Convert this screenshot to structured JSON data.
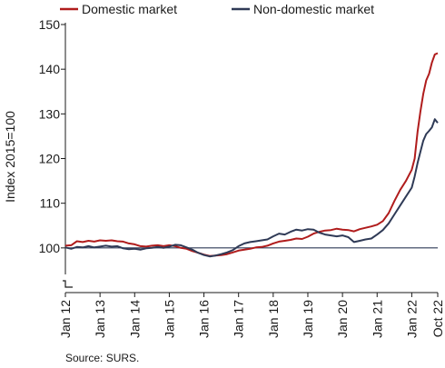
{
  "chart_data": {
    "type": "line",
    "title": "",
    "xlabel": "",
    "ylabel": "Index 2015=100",
    "ylim": [
      90,
      150
    ],
    "yticks": [
      100,
      110,
      120,
      130,
      140,
      150
    ],
    "xlim": [
      "2012-01",
      "2022-10"
    ],
    "xtick_labels": [
      {
        "label": "Jan 12",
        "date": "2012-01"
      },
      {
        "label": "Jan 13",
        "date": "2013-01"
      },
      {
        "label": "Jan 14",
        "date": "2014-01"
      },
      {
        "label": "Jan 15",
        "date": "2015-01"
      },
      {
        "label": "Jan 16",
        "date": "2016-01"
      },
      {
        "label": "Jan 17",
        "date": "2017-01"
      },
      {
        "label": "Jan 18",
        "date": "2018-01"
      },
      {
        "label": "Jan 19",
        "date": "2019-01"
      },
      {
        "label": "Jan 20",
        "date": "2020-01"
      },
      {
        "label": "Jan 21",
        "date": "2021-01"
      },
      {
        "label": "Jan 22",
        "date": "2022-01"
      },
      {
        "label": "Oct 22",
        "date": "2022-10"
      }
    ],
    "grid": false,
    "legend": "top",
    "reference_line": 100,
    "axis_break": true,
    "series": [
      {
        "name": "Domestic market",
        "color": "#b01c1c",
        "points": [
          [
            "2012-01",
            100.5
          ],
          [
            "2012-03",
            100.6
          ],
          [
            "2012-05",
            101.5
          ],
          [
            "2012-07",
            101.3
          ],
          [
            "2012-09",
            101.6
          ],
          [
            "2012-11",
            101.4
          ],
          [
            "2013-01",
            101.7
          ],
          [
            "2013-03",
            101.6
          ],
          [
            "2013-05",
            101.7
          ],
          [
            "2013-07",
            101.5
          ],
          [
            "2013-09",
            101.4
          ],
          [
            "2013-11",
            101.0
          ],
          [
            "2014-01",
            100.8
          ],
          [
            "2014-03",
            100.4
          ],
          [
            "2014-05",
            100.3
          ],
          [
            "2014-07",
            100.5
          ],
          [
            "2014-09",
            100.6
          ],
          [
            "2014-11",
            100.4
          ],
          [
            "2015-01",
            100.6
          ],
          [
            "2015-03",
            100.4
          ],
          [
            "2015-05",
            100.0
          ],
          [
            "2015-07",
            99.8
          ],
          [
            "2015-09",
            99.3
          ],
          [
            "2015-11",
            98.9
          ],
          [
            "2016-01",
            98.5
          ],
          [
            "2016-03",
            98.2
          ],
          [
            "2016-05",
            98.3
          ],
          [
            "2016-07",
            98.4
          ],
          [
            "2016-09",
            98.6
          ],
          [
            "2016-11",
            99.0
          ],
          [
            "2017-01",
            99.4
          ],
          [
            "2017-03",
            99.6
          ],
          [
            "2017-05",
            99.8
          ],
          [
            "2017-07",
            100.1
          ],
          [
            "2017-09",
            100.2
          ],
          [
            "2017-11",
            100.5
          ],
          [
            "2018-01",
            101.0
          ],
          [
            "2018-03",
            101.4
          ],
          [
            "2018-05",
            101.6
          ],
          [
            "2018-07",
            101.8
          ],
          [
            "2018-09",
            102.1
          ],
          [
            "2018-11",
            102.0
          ],
          [
            "2019-01",
            102.5
          ],
          [
            "2019-03",
            103.2
          ],
          [
            "2019-05",
            103.6
          ],
          [
            "2019-07",
            103.9
          ],
          [
            "2019-09",
            104.0
          ],
          [
            "2019-11",
            104.3
          ],
          [
            "2020-01",
            104.1
          ],
          [
            "2020-03",
            104.0
          ],
          [
            "2020-05",
            103.7
          ],
          [
            "2020-07",
            104.2
          ],
          [
            "2020-09",
            104.5
          ],
          [
            "2020-11",
            104.8
          ],
          [
            "2021-01",
            105.2
          ],
          [
            "2021-03",
            106.0
          ],
          [
            "2021-05",
            107.8
          ],
          [
            "2021-07",
            110.5
          ],
          [
            "2021-09",
            113.0
          ],
          [
            "2021-11",
            115.0
          ],
          [
            "2022-01",
            117.5
          ],
          [
            "2022-02",
            120.0
          ],
          [
            "2022-03",
            126.0
          ],
          [
            "2022-04",
            130.5
          ],
          [
            "2022-05",
            134.5
          ],
          [
            "2022-06",
            137.5
          ],
          [
            "2022-07",
            139.0
          ],
          [
            "2022-08",
            141.5
          ],
          [
            "2022-09",
            143.3
          ],
          [
            "2022-10",
            143.6
          ]
        ]
      },
      {
        "name": "Non-domestic market",
        "color": "#2f3a56",
        "points": [
          [
            "2012-01",
            100.1
          ],
          [
            "2012-03",
            99.8
          ],
          [
            "2012-05",
            100.2
          ],
          [
            "2012-07",
            100.1
          ],
          [
            "2012-09",
            100.4
          ],
          [
            "2012-11",
            100.1
          ],
          [
            "2013-01",
            100.3
          ],
          [
            "2013-03",
            100.5
          ],
          [
            "2013-05",
            100.3
          ],
          [
            "2013-07",
            100.4
          ],
          [
            "2013-09",
            99.9
          ],
          [
            "2013-11",
            99.7
          ],
          [
            "2014-01",
            99.8
          ],
          [
            "2014-03",
            99.6
          ],
          [
            "2014-05",
            99.9
          ],
          [
            "2014-07",
            100.0
          ],
          [
            "2014-09",
            100.2
          ],
          [
            "2014-11",
            100.0
          ],
          [
            "2015-01",
            100.3
          ],
          [
            "2015-03",
            100.7
          ],
          [
            "2015-05",
            100.6
          ],
          [
            "2015-07",
            100.1
          ],
          [
            "2015-09",
            99.6
          ],
          [
            "2015-11",
            98.9
          ],
          [
            "2016-01",
            98.4
          ],
          [
            "2016-03",
            98.1
          ],
          [
            "2016-05",
            98.3
          ],
          [
            "2016-07",
            98.6
          ],
          [
            "2016-09",
            99.0
          ],
          [
            "2016-11",
            99.5
          ],
          [
            "2017-01",
            100.4
          ],
          [
            "2017-03",
            101.0
          ],
          [
            "2017-05",
            101.3
          ],
          [
            "2017-07",
            101.5
          ],
          [
            "2017-09",
            101.7
          ],
          [
            "2017-11",
            101.9
          ],
          [
            "2018-01",
            102.6
          ],
          [
            "2018-03",
            103.2
          ],
          [
            "2018-05",
            103.0
          ],
          [
            "2018-07",
            103.6
          ],
          [
            "2018-09",
            104.1
          ],
          [
            "2018-11",
            103.9
          ],
          [
            "2019-01",
            104.2
          ],
          [
            "2019-03",
            104.1
          ],
          [
            "2019-05",
            103.4
          ],
          [
            "2019-07",
            103.0
          ],
          [
            "2019-09",
            102.8
          ],
          [
            "2019-11",
            102.6
          ],
          [
            "2020-01",
            102.8
          ],
          [
            "2020-03",
            102.4
          ],
          [
            "2020-05",
            101.3
          ],
          [
            "2020-07",
            101.6
          ],
          [
            "2020-09",
            101.9
          ],
          [
            "2020-11",
            102.1
          ],
          [
            "2021-01",
            103.0
          ],
          [
            "2021-03",
            104.0
          ],
          [
            "2021-05",
            105.5
          ],
          [
            "2021-07",
            107.5
          ],
          [
            "2021-09",
            109.5
          ],
          [
            "2021-11",
            111.5
          ],
          [
            "2022-01",
            113.5
          ],
          [
            "2022-02",
            116.0
          ],
          [
            "2022-03",
            119.0
          ],
          [
            "2022-04",
            121.5
          ],
          [
            "2022-05",
            124.0
          ],
          [
            "2022-06",
            125.5
          ],
          [
            "2022-07",
            126.2
          ],
          [
            "2022-08",
            127.0
          ],
          [
            "2022-09",
            128.8
          ],
          [
            "2022-10",
            128.0
          ]
        ]
      }
    ]
  },
  "source": "Source: SURS."
}
